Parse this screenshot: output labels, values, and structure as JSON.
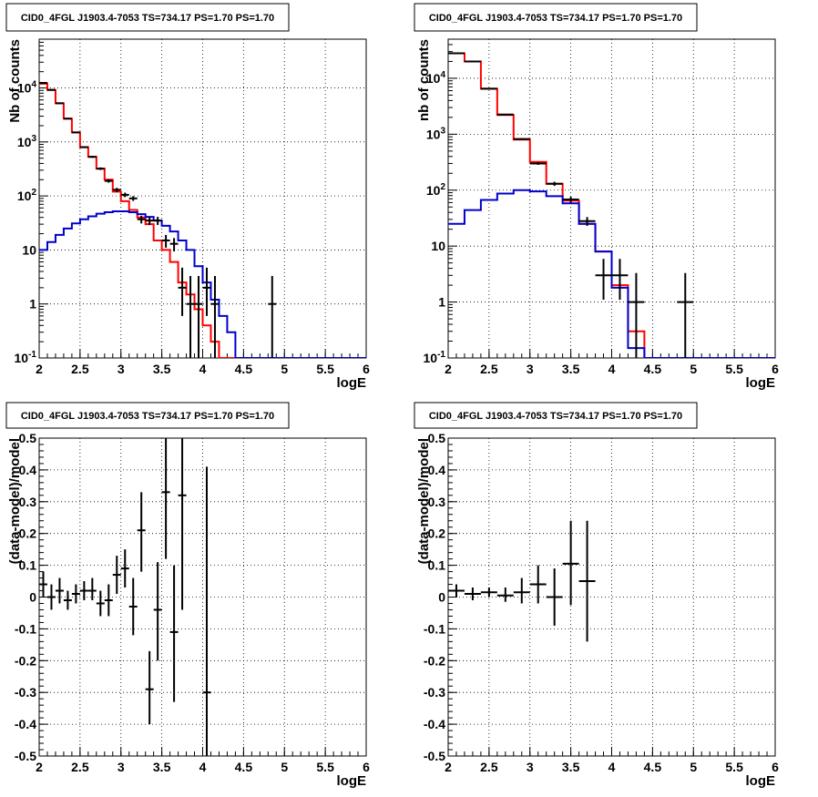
{
  "chart_data": [
    {
      "type": "line",
      "title": "CID0_4FGL J1903.4-7053 TS=734.17 PS=1.70 PS=1.70",
      "xlabel": "logE",
      "ylabel": "Nb of counts",
      "xlim": [
        2,
        6
      ],
      "ylim": [
        0.1,
        80000
      ],
      "log_y": true,
      "grid": true,
      "xticks": [
        "2",
        "2.5",
        "3",
        "3.5",
        "4",
        "4.5",
        "5",
        "5.5",
        "6"
      ],
      "yticks": [
        "10^-1",
        "1",
        "10",
        "10^2",
        "10^3",
        "10^4"
      ],
      "bin_edges": [
        2.0,
        2.1,
        2.2,
        2.3,
        2.4,
        2.5,
        2.6,
        2.7,
        2.8,
        2.9,
        3.0,
        3.1,
        3.2,
        3.3,
        3.4,
        3.5,
        3.6,
        3.7,
        3.8,
        3.9,
        4.0,
        4.1,
        4.2,
        4.3,
        4.4,
        4.5,
        4.6,
        4.7,
        4.8,
        4.9,
        5.0,
        5.1,
        5.2,
        5.3,
        5.4,
        5.5,
        5.6,
        5.7,
        5.8,
        5.9,
        6.0
      ],
      "series": [
        {
          "color": "#ff0000",
          "style": "step",
          "values": [
            12000,
            9200,
            5200,
            2700,
            1500,
            800,
            530,
            320,
            200,
            120,
            80,
            55,
            40,
            30,
            15,
            10,
            6,
            2.5,
            1.5,
            0.8,
            0.4,
            0.2,
            0.1,
            0.1,
            0.1,
            0.1,
            0.1,
            0.1,
            0.1,
            0.1,
            0.1,
            0.1,
            0.1,
            0.1,
            0.1,
            0.1,
            0.1,
            0.1,
            0.1,
            0.1
          ]
        },
        {
          "color": "#0000cc",
          "style": "step",
          "values": [
            10,
            14,
            19,
            25,
            31,
            37,
            42,
            47,
            50,
            52,
            52,
            50,
            46,
            41,
            35,
            28,
            22,
            15,
            10,
            5,
            2.5,
            1.2,
            0.6,
            0.3,
            0.1,
            0.1,
            0.1,
            0.1,
            0.1,
            0.1,
            0.1,
            0.1,
            0.1,
            0.1,
            0.1,
            0.1,
            0.1,
            0.1,
            0.1,
            0.1
          ]
        },
        {
          "color": "#000000",
          "style": "points",
          "points": [
            [
              2.05,
              12400,
              12300,
              12500
            ],
            [
              2.15,
              9200,
              9100,
              9300
            ],
            [
              2.25,
              5200,
              5130,
              5270
            ],
            [
              2.35,
              2700,
              2650,
              2750
            ],
            [
              2.45,
              1500,
              1460,
              1540
            ],
            [
              2.55,
              800,
              772,
              828
            ],
            [
              2.65,
              530,
              507,
              553
            ],
            [
              2.75,
              320,
              302,
              338
            ],
            [
              2.85,
              190,
              176,
              204
            ],
            [
              2.95,
              130,
              119,
              141
            ],
            [
              3.05,
              105,
              95,
              115
            ],
            [
              3.15,
              90,
              81,
              99
            ],
            [
              3.25,
              37,
              31,
              43
            ],
            [
              3.35,
              35,
              29,
              41
            ],
            [
              3.45,
              35,
              29,
              41
            ],
            [
              3.55,
              15,
              11,
              19
            ],
            [
              3.65,
              13,
              9.4,
              16.6
            ],
            [
              3.75,
              2,
              0.6,
              4.7
            ],
            [
              3.85,
              1,
              0.1,
              3.3
            ],
            [
              3.95,
              1,
              0.1,
              3.3
            ],
            [
              4.05,
              2,
              0.6,
              4.7
            ],
            [
              4.15,
              1,
              0.1,
              3.3
            ],
            [
              4.85,
              1,
              0.1,
              3.3
            ]
          ]
        }
      ]
    },
    {
      "type": "line",
      "title": "CID0_4FGL J1903.4-7053 TS=734.17 PS=1.70 PS=1.70",
      "xlabel": "logE",
      "ylabel": "nb of counts",
      "xlim": [
        2,
        6
      ],
      "ylim": [
        0.1,
        50000
      ],
      "log_y": true,
      "grid": true,
      "xticks": [
        "2",
        "2.5",
        "3",
        "3.5",
        "4",
        "4.5",
        "5",
        "5.5",
        "6"
      ],
      "yticks": [
        "10^-1",
        "1",
        "10",
        "10^2",
        "10^3",
        "10^4"
      ],
      "bin_edges": [
        2.0,
        2.2,
        2.4,
        2.6,
        2.8,
        3.0,
        3.2,
        3.4,
        3.6,
        3.8,
        4.0,
        4.2,
        4.4,
        4.6,
        4.8,
        5.0,
        5.2,
        5.4,
        5.6,
        5.8,
        6.0
      ],
      "series": [
        {
          "color": "#ff0000",
          "style": "step",
          "values": [
            28000,
            20000,
            6500,
            2200,
            800,
            320,
            130,
            65,
            25,
            8,
            2,
            0.3,
            0.1,
            0.1,
            0.1,
            0.1,
            0.1,
            0.1,
            0.1,
            0.1
          ]
        },
        {
          "color": "#0000cc",
          "style": "step",
          "values": [
            25,
            44,
            67,
            87,
            100,
            95,
            78,
            58,
            25,
            8,
            1.8,
            0.15,
            0.1,
            0.1,
            0.1,
            0.1,
            0.1,
            0.1,
            0.1,
            0.1
          ]
        },
        {
          "color": "#000000",
          "style": "points",
          "points": [
            [
              2.1,
              28000,
              27830,
              28170
            ],
            [
              2.3,
              20000,
              19860,
              20140
            ],
            [
              2.5,
              6500,
              6420,
              6580
            ],
            [
              2.7,
              2250,
              2200,
              2300
            ],
            [
              2.9,
              820,
              790,
              850
            ],
            [
              3.1,
              300,
              283,
              317
            ],
            [
              3.3,
              130,
              119,
              141
            ],
            [
              3.5,
              68,
              60,
              76
            ],
            [
              3.7,
              28,
              23,
              33
            ],
            [
              3.9,
              3,
              1.1,
              5.9
            ],
            [
              4.1,
              3,
              1.1,
              5.9
            ],
            [
              4.3,
              1,
              0.1,
              3.3
            ],
            [
              4.9,
              1,
              0.1,
              3.3
            ]
          ]
        }
      ]
    },
    {
      "type": "scatter",
      "title": "CID0_4FGL J1903.4-7053 TS=734.17 PS=1.70 PS=1.70",
      "xlabel": "logE",
      "ylabel": "(data-model)/model",
      "xlim": [
        2,
        6
      ],
      "ylim": [
        -0.5,
        0.5
      ],
      "grid": true,
      "xticks": [
        "2",
        "2.5",
        "3",
        "3.5",
        "4",
        "4.5",
        "5",
        "5.5",
        "6"
      ],
      "yticks": [
        "-0.5",
        "-0.4",
        "-0.3",
        "-0.2",
        "-0.1",
        "0",
        "0.1",
        "0.2",
        "0.3",
        "0.4",
        "0.5"
      ],
      "series": [
        {
          "color": "#000000",
          "points": [
            [
              2.05,
              0.04,
              0.0,
              0.08
            ],
            [
              2.15,
              0.0,
              -0.04,
              0.04
            ],
            [
              2.25,
              0.02,
              -0.02,
              0.06
            ],
            [
              2.35,
              -0.01,
              -0.04,
              0.02
            ],
            [
              2.45,
              0.01,
              -0.02,
              0.04
            ],
            [
              2.55,
              0.02,
              -0.01,
              0.05
            ],
            [
              2.65,
              0.02,
              -0.01,
              0.06
            ],
            [
              2.75,
              -0.02,
              -0.06,
              0.02
            ],
            [
              2.85,
              -0.01,
              -0.06,
              0.04
            ],
            [
              2.95,
              0.07,
              0.01,
              0.13
            ],
            [
              3.05,
              0.09,
              0.03,
              0.15
            ],
            [
              3.15,
              -0.03,
              -0.12,
              0.06
            ],
            [
              3.25,
              0.21,
              0.08,
              0.33
            ],
            [
              3.35,
              -0.29,
              -0.4,
              -0.17
            ],
            [
              3.45,
              -0.04,
              -0.2,
              0.11
            ],
            [
              3.55,
              0.33,
              0.12,
              0.5
            ],
            [
              3.65,
              -0.11,
              -0.33,
              0.1
            ],
            [
              3.75,
              0.32,
              -0.04,
              0.5
            ],
            [
              4.05,
              -0.3,
              -0.5,
              0.41
            ]
          ]
        }
      ]
    },
    {
      "type": "scatter",
      "title": "CID0_4FGL J1903.4-7053 TS=734.17 PS=1.70 PS=1.70",
      "xlabel": "logE",
      "ylabel": "(data-model)/model",
      "xlim": [
        2,
        6
      ],
      "ylim": [
        -0.5,
        0.5
      ],
      "grid": true,
      "xticks": [
        "2",
        "2.5",
        "3",
        "3.5",
        "4",
        "4.5",
        "5",
        "5.5",
        "6"
      ],
      "yticks": [
        "-0.5",
        "-0.4",
        "-0.3",
        "-0.2",
        "-0.1",
        "0",
        "0.1",
        "0.2",
        "0.3",
        "0.4",
        "0.5"
      ],
      "series": [
        {
          "color": "#000000",
          "points": [
            [
              2.1,
              0.02,
              0.0,
              0.04
            ],
            [
              2.3,
              0.01,
              -0.01,
              0.03
            ],
            [
              2.5,
              0.015,
              0.0,
              0.03
            ],
            [
              2.7,
              0.005,
              -0.015,
              0.03
            ],
            [
              2.9,
              0.015,
              -0.02,
              0.06
            ],
            [
              3.1,
              0.04,
              -0.02,
              0.1
            ],
            [
              3.3,
              0.0,
              -0.09,
              0.09
            ],
            [
              3.5,
              0.105,
              -0.025,
              0.24
            ],
            [
              3.7,
              0.05,
              -0.14,
              0.24
            ]
          ]
        }
      ]
    }
  ]
}
